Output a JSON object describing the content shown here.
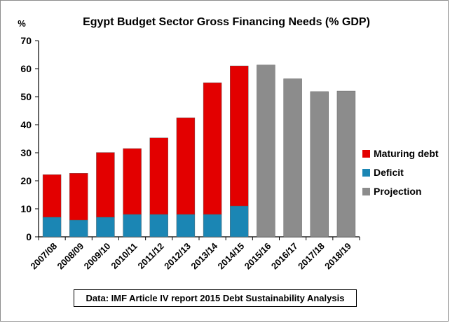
{
  "chart_data": {
    "type": "bar",
    "stacked": true,
    "title": "Egypt Budget Sector Gross Financing Needs (% GDP)",
    "ylabel": "%",
    "xlabel": "",
    "ylim": [
      0,
      70
    ],
    "yticks": [
      0,
      10,
      20,
      30,
      40,
      50,
      60,
      70
    ],
    "grid": false,
    "legend_position": "right",
    "categories": [
      "2007/08",
      "2008/09",
      "2009/10",
      "2010/11",
      "2011/12",
      "2012/13",
      "2013/14",
      "2014/15",
      "2015/16",
      "2016/17",
      "2017/18",
      "2018/19"
    ],
    "series": [
      {
        "name": "Deficit",
        "color": "#1B86B4",
        "values": [
          7,
          6,
          7,
          8,
          8,
          8,
          8,
          11,
          null,
          null,
          null,
          null
        ]
      },
      {
        "name": "Maturing debt",
        "color": "#E30000",
        "values": [
          15.2,
          16.7,
          23.1,
          23.5,
          27.3,
          34.5,
          47,
          50,
          null,
          null,
          null,
          null
        ]
      },
      {
        "name": "Projection",
        "color": "#8C8C8C",
        "values": [
          null,
          null,
          null,
          null,
          null,
          null,
          null,
          null,
          61.3,
          56.4,
          51.8,
          52
        ]
      }
    ],
    "legend_order": [
      "Maturing debt",
      "Deficit",
      "Projection"
    ]
  },
  "source_note": "Data: IMF Article IV report 2015 Debt Sustainability Analysis"
}
